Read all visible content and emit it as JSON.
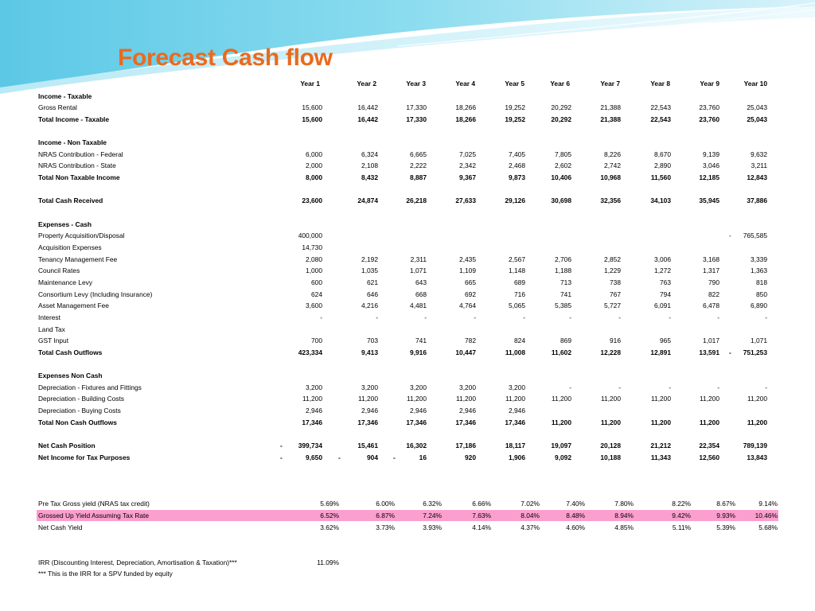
{
  "title": "Forecast Cash flow",
  "years": [
    "Year 1",
    "Year 2",
    "Year 3",
    "Year 4",
    "Year 5",
    "Year 6",
    "Year 7",
    "Year 8",
    "Year 9",
    "Year 10"
  ],
  "rows": [
    {
      "label": "Income - Taxable",
      "style": "bold",
      "values": []
    },
    {
      "label": "Gross Rental",
      "values": [
        "15,600",
        "16,442",
        "17,330",
        "18,266",
        "19,252",
        "20,292",
        "21,388",
        "22,543",
        "23,760",
        "25,043"
      ]
    },
    {
      "label": "Total Income - Taxable",
      "style": "bold",
      "values": [
        "15,600",
        "16,442",
        "17,330",
        "18,266",
        "19,252",
        "20,292",
        "21,388",
        "22,543",
        "23,760",
        "25,043"
      ]
    },
    {
      "label": "",
      "values": []
    },
    {
      "label": "Income - Non Taxable",
      "style": "bold",
      "values": []
    },
    {
      "label": "NRAS Contribution - Federal",
      "values": [
        "6,000",
        "6,324",
        "6,665",
        "7,025",
        "7,405",
        "7,805",
        "8,226",
        "8,670",
        "9,139",
        "9,632"
      ]
    },
    {
      "label": "NRAS Contribution - State",
      "values": [
        "2,000",
        "2,108",
        "2,222",
        "2,342",
        "2,468",
        "2,602",
        "2,742",
        "2,890",
        "3,046",
        "3,211"
      ]
    },
    {
      "label": "Total Non Taxable Income",
      "style": "bold",
      "values": [
        "8,000",
        "8,432",
        "8,887",
        "9,367",
        "9,873",
        "10,406",
        "10,968",
        "11,560",
        "12,185",
        "12,843"
      ]
    },
    {
      "label": "",
      "values": []
    },
    {
      "label": "Total Cash Received",
      "style": "bold",
      "values": [
        "23,600",
        "24,874",
        "26,218",
        "27,633",
        "29,126",
        "30,698",
        "32,356",
        "34,103",
        "35,945",
        "37,886"
      ]
    },
    {
      "label": "",
      "values": []
    },
    {
      "label": "Expenses - Cash",
      "style": "bold",
      "values": []
    },
    {
      "label": "Property Acquisition/Disposal",
      "values": [
        "400,000",
        "",
        "",
        "",
        "",
        "",
        "",
        "",
        "",
        "765,585"
      ],
      "neg": [
        false,
        false,
        false,
        false,
        false,
        false,
        false,
        false,
        false,
        true
      ]
    },
    {
      "label": "Acquisition Expenses",
      "values": [
        "14,730"
      ]
    },
    {
      "label": "Tenancy Management Fee",
      "values": [
        "2,080",
        "2,192",
        "2,311",
        "2,435",
        "2,567",
        "2,706",
        "2,852",
        "3,006",
        "3,168",
        "3,339"
      ]
    },
    {
      "label": "Council Rates",
      "values": [
        "1,000",
        "1,035",
        "1,071",
        "1,109",
        "1,148",
        "1,188",
        "1,229",
        "1,272",
        "1,317",
        "1,363"
      ]
    },
    {
      "label": "Maintenance Levy",
      "values": [
        "600",
        "621",
        "643",
        "665",
        "689",
        "713",
        "738",
        "763",
        "790",
        "818"
      ]
    },
    {
      "label": "Consortium Levy (Including Insurance)",
      "values": [
        "624",
        "646",
        "668",
        "692",
        "716",
        "741",
        "767",
        "794",
        "822",
        "850"
      ]
    },
    {
      "label": "Asset Management Fee",
      "values": [
        "3,600",
        "4,216",
        "4,481",
        "4,764",
        "5,065",
        "5,385",
        "5,727",
        "6,091",
        "6,478",
        "6,890"
      ]
    },
    {
      "label": "Interest",
      "values": [
        "-",
        "-",
        "-",
        "-",
        "-",
        "-",
        "-",
        "-",
        "-",
        "-"
      ]
    },
    {
      "label": "Land Tax",
      "values": []
    },
    {
      "label": "GST Input",
      "values": [
        "700",
        "703",
        "741",
        "782",
        "824",
        "869",
        "916",
        "965",
        "1,017",
        "1,071"
      ]
    },
    {
      "label": "Total Cash Outflows",
      "style": "bold",
      "values": [
        "423,334",
        "9,413",
        "9,916",
        "10,447",
        "11,008",
        "11,602",
        "12,228",
        "12,891",
        "13,591",
        "751,253"
      ],
      "neg": [
        false,
        false,
        false,
        false,
        false,
        false,
        false,
        false,
        false,
        true
      ]
    },
    {
      "label": "",
      "values": []
    },
    {
      "label": "Expenses Non Cash",
      "style": "bold",
      "values": []
    },
    {
      "label": "Depreciation - Fixtures and Fittings",
      "values": [
        "3,200",
        "3,200",
        "3,200",
        "3,200",
        "3,200",
        "-",
        "-",
        "-",
        "-",
        "-"
      ]
    },
    {
      "label": "Depreciation - Building Costs",
      "values": [
        "11,200",
        "11,200",
        "11,200",
        "11,200",
        "11,200",
        "11,200",
        "11,200",
        "11,200",
        "11,200",
        "11,200"
      ]
    },
    {
      "label": "Depreciation - Buying Costs",
      "values": [
        "2,946",
        "2,946",
        "2,946",
        "2,946",
        "2,946"
      ]
    },
    {
      "label": "Total Non Cash Outflows",
      "style": "bold",
      "values": [
        "17,346",
        "17,346",
        "17,346",
        "17,346",
        "17,346",
        "11,200",
        "11,200",
        "11,200",
        "11,200",
        "11,200"
      ]
    },
    {
      "label": "",
      "values": []
    },
    {
      "label": "Net Cash Position",
      "style": "bold",
      "values": [
        "399,734",
        "15,461",
        "16,302",
        "17,186",
        "18,117",
        "19,097",
        "20,128",
        "21,212",
        "22,354",
        "789,139"
      ],
      "neg": [
        true
      ]
    },
    {
      "label": "Net Income for Tax Purposes",
      "style": "bold",
      "values": [
        "9,650",
        "904",
        "16",
        "920",
        "1,906",
        "9,092",
        "10,188",
        "11,343",
        "12,560",
        "13,843"
      ],
      "neg": [
        true,
        true,
        true
      ]
    },
    {
      "label": "",
      "values": []
    },
    {
      "label": "",
      "values": []
    },
    {
      "label": "",
      "values": []
    },
    {
      "label": "Pre Tax Gross yield (NRAS tax credit)",
      "values": [
        "5.69%",
        "6.00%",
        "6.32%",
        "6.66%",
        "7.02%",
        "7.40%",
        "7.80%",
        "8.22%",
        "8.67%",
        "9.14%"
      ],
      "pct": true
    },
    {
      "label": "Grossed Up Yield Assuming Tax Rate",
      "style": "highlight",
      "values": [
        "6.52%",
        "6.87%",
        "7.24%",
        "7.63%",
        "8.04%",
        "8.48%",
        "8.94%",
        "9.42%",
        "9.93%",
        "10.46%"
      ],
      "pct": true
    },
    {
      "label": "Net Cash Yield",
      "values": [
        "3.62%",
        "3.73%",
        "3.93%",
        "4.14%",
        "4.37%",
        "4.60%",
        "4.85%",
        "5.11%",
        "5.39%",
        "5.68%"
      ],
      "pct": true
    },
    {
      "label": "",
      "values": []
    },
    {
      "label": "",
      "values": []
    },
    {
      "label": "IRR (Discounting Interest, Depreciation, Amortisation & Taxation)***",
      "values": [
        "11.09%"
      ],
      "pct": true
    },
    {
      "label": "*** This is the IRR for a SPV funded by equity",
      "values": []
    }
  ]
}
